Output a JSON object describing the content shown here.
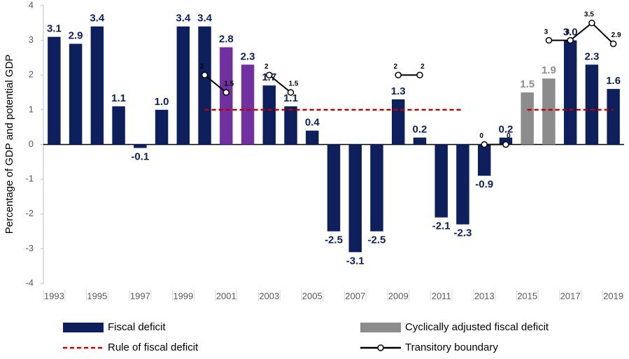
{
  "chart_data": {
    "type": "bar",
    "ylabel": "Percentage of GDP and potential GDP",
    "categories": [
      "1993",
      null,
      "1995",
      null,
      "1997",
      null,
      "1999",
      null,
      "2001",
      null,
      "2003",
      null,
      "2005",
      null,
      "2007",
      null,
      "2009",
      null,
      "2011",
      null,
      "2013",
      null,
      "2015",
      null,
      "2017",
      null,
      "2019"
    ],
    "ylim": [
      -4,
      4
    ],
    "yticks": [
      -4,
      -3,
      -2,
      -1,
      0,
      1,
      2,
      3,
      4
    ],
    "series": [
      {
        "name": "Fiscal deficit",
        "type": "bar",
        "color": "#0d1f5c",
        "colors": [
          "#0d1f5c",
          "#0d1f5c",
          "#0d1f5c",
          "#0d1f5c",
          "#0d1f5c",
          "#0d1f5c",
          "#0d1f5c",
          "#0d1f5c",
          "#7030a0",
          "#7030a0",
          "#0d1f5c",
          "#0d1f5c",
          "#0d1f5c",
          "#0d1f5c",
          "#0d1f5c",
          "#0d1f5c",
          "#0d1f5c",
          "#0d1f5c",
          "#0d1f5c",
          "#0d1f5c",
          "#0d1f5c",
          "#0d1f5c",
          "#0d1f5c",
          "#0d1f5c",
          "#0d1f5c",
          "#0d1f5c",
          "#0d1f5c"
        ],
        "values": [
          3.1,
          2.9,
          3.4,
          1.1,
          -0.1,
          1.0,
          3.4,
          3.4,
          2.8,
          2.3,
          1.7,
          1.1,
          0.4,
          -2.5,
          -3.1,
          -2.5,
          1.3,
          0.2,
          -2.1,
          -2.3,
          -0.9,
          0.2,
          null,
          null,
          3.0,
          2.3,
          1.6
        ],
        "value_labels": [
          "3.1",
          "2.9",
          "3.4",
          "1.1",
          "-0.1",
          "1.0",
          "3.4",
          "3.4",
          "2.8",
          "2.3",
          "1.7",
          "1.1",
          "0.4",
          "-2.5",
          "-3.1",
          "-2.5",
          "1.3",
          "0.2",
          "-2.1",
          "-2.3",
          "-0.9",
          "0.2",
          null,
          null,
          "3.0",
          "2.3",
          "1.6"
        ]
      },
      {
        "name": "Cyclically adjusted fiscal deficit",
        "type": "bar",
        "color": "#8c8c8c",
        "values": [
          null,
          null,
          null,
          null,
          null,
          null,
          null,
          null,
          null,
          null,
          null,
          null,
          null,
          null,
          null,
          null,
          null,
          null,
          null,
          null,
          null,
          null,
          1.5,
          1.9,
          null,
          null,
          null
        ],
        "value_labels": [
          null,
          null,
          null,
          null,
          null,
          null,
          null,
          null,
          null,
          null,
          null,
          null,
          null,
          null,
          null,
          null,
          null,
          null,
          null,
          null,
          null,
          null,
          "1.5",
          "1.9",
          null,
          null,
          null
        ]
      },
      {
        "name": "Rule of fiscal deficit",
        "type": "line",
        "color": "#c00000",
        "dashed": true,
        "values": [
          null,
          null,
          null,
          null,
          null,
          null,
          null,
          1,
          1,
          1,
          1,
          1,
          1,
          1,
          1,
          1,
          1,
          1,
          1,
          1,
          null,
          null,
          1,
          1,
          1,
          1,
          1
        ]
      },
      {
        "name": "Transitory boundary",
        "type": "line",
        "color": "#000000",
        "markers": true,
        "values": [
          null,
          null,
          null,
          null,
          null,
          null,
          null,
          2,
          1.5,
          null,
          2,
          1.5,
          null,
          null,
          null,
          null,
          2,
          2,
          null,
          null,
          0,
          0,
          null,
          3,
          3,
          3.5,
          2.9
        ]
      }
    ]
  }
}
